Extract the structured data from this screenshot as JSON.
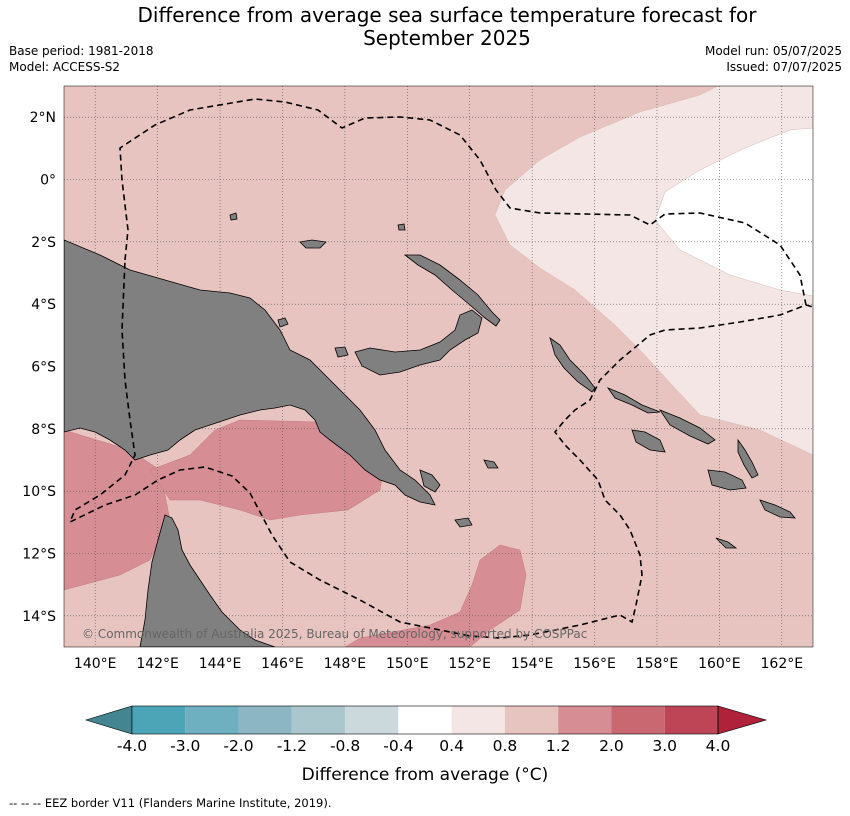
{
  "title": {
    "line1": "Difference from average sea surface temperature forecast for",
    "line2": "September 2025"
  },
  "meta": {
    "base_period": "Base period: 1981-2018",
    "model": "Model: ACCESS-S2",
    "model_run": "Model run: 05/07/2025",
    "issued": "Issued: 07/07/2025"
  },
  "map": {
    "lon_min": 139,
    "lon_max": 163,
    "lat_min": -15,
    "lat_max": 3,
    "lon_ticks": [
      140,
      142,
      144,
      146,
      148,
      150,
      152,
      154,
      156,
      158,
      160,
      162
    ],
    "lon_labels": [
      "140°E",
      "142°E",
      "144°E",
      "146°E",
      "148°E",
      "150°E",
      "152°E",
      "154°E",
      "156°E",
      "158°E",
      "160°E",
      "162°E"
    ],
    "lat_ticks": [
      2,
      0,
      -2,
      -4,
      -6,
      -8,
      -10,
      -12,
      -14
    ],
    "lat_labels": [
      "2°N",
      "0°",
      "2°S",
      "4°S",
      "6°S",
      "8°S",
      "10°S",
      "12°S",
      "14°S"
    ],
    "copyright": "© Commonwealth of Australia 2025, Bureau of Meteorology, supported by COSPPac",
    "colors": {
      "land": "#808080",
      "band_0_4_0_8": "#f4e6e4",
      "band_0_8_1_2": "#e8c4c1",
      "band_1_2_2_0": "#d68d94",
      "band_m0_4_0_4": "#ffffff"
    }
  },
  "colorbar": {
    "ticks": [
      "-4.0",
      "-3.0",
      "-2.0",
      "-1.2",
      "-0.8",
      "-0.4",
      "0.4",
      "0.8",
      "1.2",
      "2.0",
      "3.0",
      "4.0"
    ],
    "colors": [
      "#438591",
      "#4ca5b6",
      "#6fb0c0",
      "#8cb6c3",
      "#a9c7cd",
      "#ccd9dc",
      "#ffffff",
      "#f4e6e4",
      "#e8c4c1",
      "#d68d94",
      "#ca6872",
      "#be4556",
      "#b0213a"
    ],
    "label": "Difference from average (°C)"
  },
  "footer": "--  --  -- EEZ border V11 (Flanders Marine Institute, 2019)."
}
